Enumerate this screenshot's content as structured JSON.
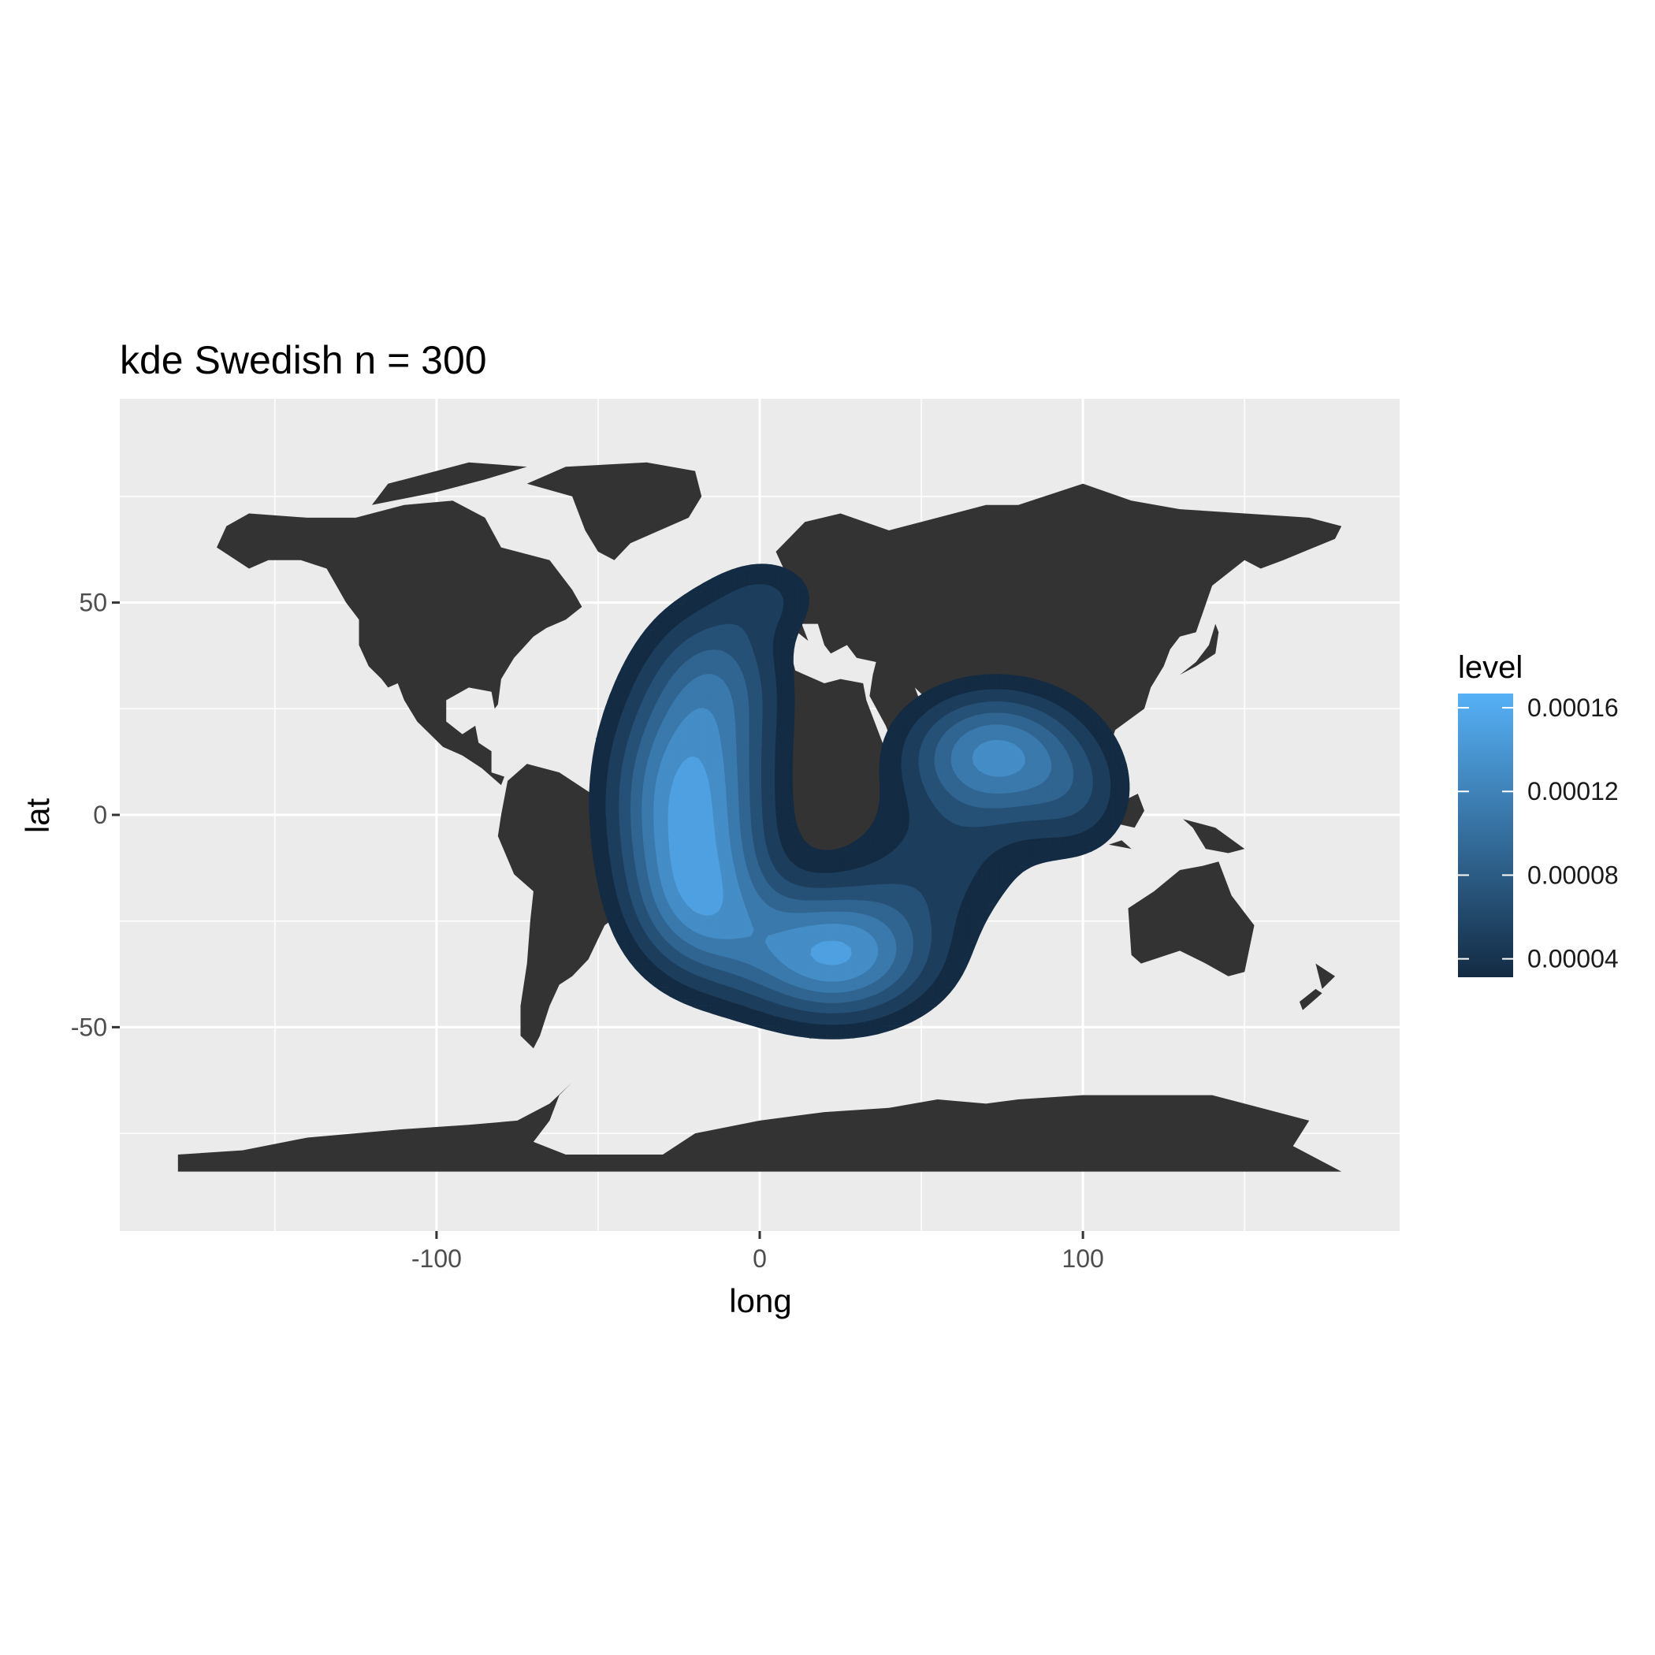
{
  "chart_data": {
    "type": "contour-map",
    "title": "kde  Swedish n = 300",
    "xlabel": "long",
    "ylabel": "lat",
    "xlim": [
      -198,
      198
    ],
    "ylim": [
      -98,
      98
    ],
    "x_ticks": [
      -100,
      0,
      100
    ],
    "y_ticks": [
      -50,
      0,
      50
    ],
    "x_minor_gridlines": [
      -150,
      -50,
      50,
      150
    ],
    "y_minor_gridlines": [
      -75,
      -25,
      25,
      75
    ],
    "grid": true,
    "panel_background": "#ebebeb",
    "land_color": "#333333",
    "legend": {
      "title": "level",
      "position": "right",
      "labels": [
        "0.00016",
        "0.00012",
        "0.00008",
        "0.00004"
      ],
      "values": [
        0.00016,
        0.00012,
        8e-05,
        4e-05
      ],
      "range": [
        3.12e-05,
        0.0001668
      ],
      "color_low": "#132b43",
      "color_high": "#56b1f7"
    },
    "kde_peaks": [
      {
        "long": -22,
        "lat": 4,
        "level": 0.000145
      },
      {
        "long": 23,
        "lat": -33,
        "level": 0.000165
      },
      {
        "long": 73,
        "lat": 14,
        "level": 0.00012
      }
    ],
    "contour_levels": [
      3e-05,
      5e-05,
      7e-05,
      9e-05,
      0.00011,
      0.00013,
      0.00015
    ]
  }
}
